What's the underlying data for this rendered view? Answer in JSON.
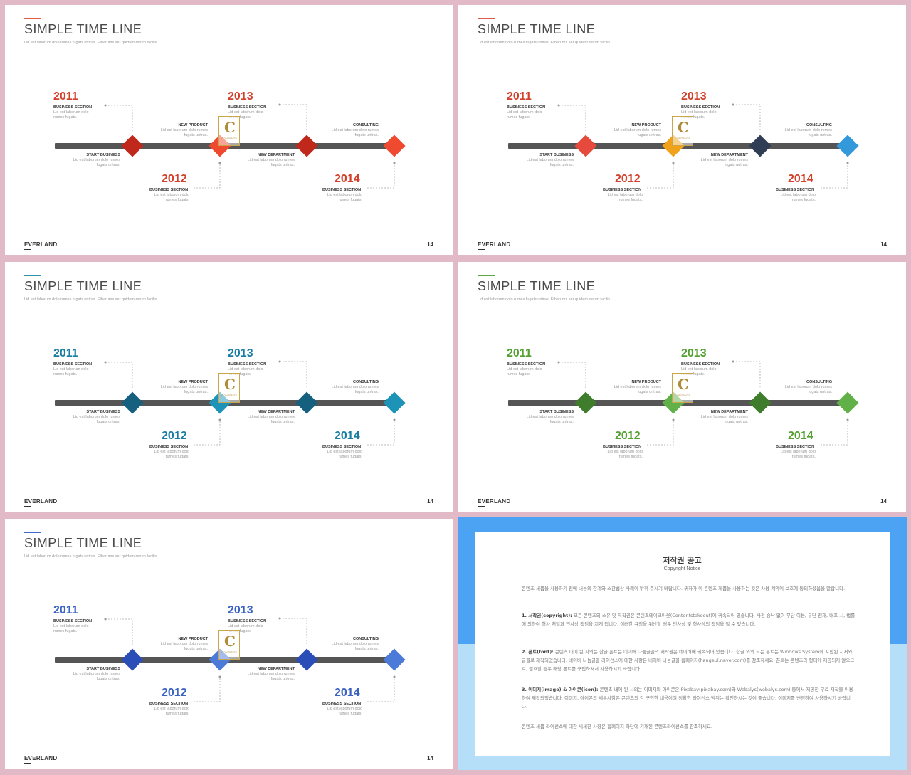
{
  "slides": [
    {
      "title": "SIMPLE TIME LINE",
      "subtitle": "Lid est laborum dolo rumes fugats untras. Etharums ser quidem rerum facilis",
      "colors": {
        "accent": "#e05a47",
        "y2011": "#d3402b",
        "y2012": "#d3402b",
        "y2013": "#d3402b",
        "y2014": "#d3402b",
        "d1": "#c0281b",
        "d2": "#ef4a2f",
        "d3": "#c0281b",
        "d4": "#ef4a2f"
      },
      "watermark": {
        "letter": "C",
        "text": "CONTENTS"
      }
    },
    {
      "title": "SIMPLE TIME LINE",
      "subtitle": "Lid est laborum dolo rumes fugats untras. Etharums ser quidem rerum facilis",
      "colors": {
        "accent": "#e05a47",
        "y2011": "#d3402b",
        "y2012": "#d3402b",
        "y2013": "#d3402b",
        "y2014": "#d3402b",
        "d1": "#e64a3c",
        "d2": "#f0a21a",
        "d3": "#2f3e55",
        "d4": "#3399db"
      },
      "watermark": {
        "letter": "C",
        "text": "CONTENTS"
      }
    },
    {
      "title": "SIMPLE TIME LINE",
      "subtitle": "Lid est laborum dolo rumes fugats untras. Etharums ser quidem rerum facilis",
      "colors": {
        "accent": "#2e93ad",
        "y2011": "#1a7ea3",
        "y2012": "#1a7ea3",
        "y2013": "#1a7ea3",
        "y2014": "#1a7ea3",
        "d1": "#16607f",
        "d2": "#1d93b8",
        "d3": "#16607f",
        "d4": "#1d93b8"
      },
      "watermark": {
        "letter": "C",
        "text": "CONTENTS"
      }
    },
    {
      "title": "SIMPLE TIME LINE",
      "subtitle": "Lid est laborum dolo rumes fugats untras. Etharums ser quidem rerum facilis",
      "colors": {
        "accent": "#5aa644",
        "y2011": "#54a031",
        "y2012": "#54a031",
        "y2013": "#54a031",
        "y2014": "#54a031",
        "d1": "#3f7d2d",
        "d2": "#62b048",
        "d3": "#3f7d2d",
        "d4": "#62b048"
      },
      "watermark": {
        "letter": "C",
        "text": "CONTENTS"
      }
    },
    {
      "title": "SIMPLE TIME LINE",
      "subtitle": "Lid est laborum dolo rumes fugats untras. Etharums ser quidem rerum facilis",
      "colors": {
        "accent": "#3f68c8",
        "y2011": "#3a62c2",
        "y2012": "#3a62c2",
        "y2013": "#3a62c2",
        "y2014": "#3a62c2",
        "d1": "#2a4db8",
        "d2": "#4b7ad8",
        "d3": "#2a4db8",
        "d4": "#4b7ad8"
      },
      "watermark": {
        "letter": "C",
        "text": "CONTENTS"
      }
    }
  ],
  "timeline": {
    "y2011": "2011",
    "y2012": "2012",
    "y2013": "2013",
    "y2014": "2014",
    "business_section": "BUSINESS SECTION",
    "business_desc": "Lid est laborum dolo rumes fugats.",
    "start_business": "START BUSINESS",
    "new_product": "NEW PRODUCT",
    "new_department": "NEW DEPARTMENT",
    "consulting": "CONSULTING",
    "mid_desc": "Lid est laborum dolo rumes fugats untras.",
    "footer_brand": "EVERLAND",
    "page_number": "14"
  },
  "notice": {
    "title": "저작권 공고",
    "subtitle": "Copyright Notice",
    "intro": "콘텐츠 세품을 사용하기 전에 내용의 한계와 소관법상 사례이 밝혀 주시기 바랍니다. 귀하가 이 콘텐츠 제품을 사용하는 것은 사용 계약이 보호에 동의하셨음을 말합니다.",
    "p1_head": "1. 서작권(copyright):",
    "p1_body": "모든 콘텐츠의 소유 및 저작권은 콘텐츠테이크아웃(Contentstakeout)에 귀속되어 있습니다. 사전 승낙 없이 무단 이용, 무단 전재, 배포 시, 법률에 의하여 형사 처벌과 민사상 책임을 지게 됩니다. 이러한 규정을 위반할 경우 민사상 및 형사상의 책임을 질 수 있습니다.",
    "p2_head": "2. 폰트(font):",
    "p2_body": "콘텐츠 내에 된 사의는 한글 폰트는 네이버 나눔글꼴의 저작권은 네이버에 귀속되어 있습니다. 한글 외의 모든 폰트는 Windows System에 포함된 시서와 글꼴로 제작되었습니다. 네이버 나눔글꼴 라이선스에 대한 사항은 네이버 나눔글꼴 홈페이지(hangeul.naver.com)를 참조하세요. 폰트는 콘텐츠의 형태에 제공되지 않으므로, 필요할 경우 해당 폰트를 구입하셔서 사용하시기 바랍니다.",
    "p3_head": "3. 이미지(image) & 아이콘(icon):",
    "p3_body": "콘텐츠 내에 된 사의는 이미지와 아이콘은 Pixabay(pixabay.com)와 Webalys(webalys.com) 등에서 제공한 무료 저작물 이용하여 제작되었습니다. 이미지, 아이콘의 세부사항은 콘텐츠의 각 구현한 내용이며 정확한 라이선스 범위는 확인하시는 것이 좋습니다. 이미지를 변경하여 사용하시기 바랍니다.",
    "outro": "콘텐츠 세품 라이선스에 대한 세세한 사항은 홈페이지 하단에 기재된 콘텐츠라이선스를 참조하세요."
  }
}
